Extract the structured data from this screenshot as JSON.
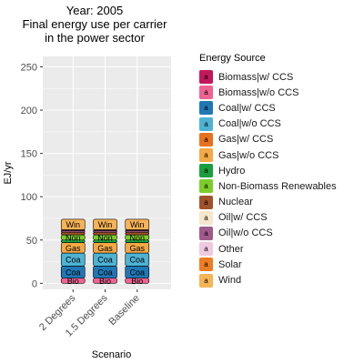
{
  "chart_data": {
    "type": "bar",
    "stacked": true,
    "title": "Year: 2005\nFinal energy use per carrier\nin the power sector",
    "xlabel": "Scenario",
    "ylabel": "EJ/yr",
    "ylim": [
      -7,
      262
    ],
    "yticks": [
      0,
      50,
      100,
      150,
      200,
      250
    ],
    "categories": [
      "2 Degrees",
      "1.5 Degrees",
      "Baseline"
    ],
    "legend_title": "Energy Source",
    "legend_key_letter": "a",
    "series": [
      {
        "name": "Biomass|w/ CCS",
        "color": "#c2185b",
        "values": [
          0,
          0,
          0
        ],
        "label": "Bio"
      },
      {
        "name": "Biomass|w/o CCS",
        "color": "#f06292",
        "values": [
          6,
          6,
          6
        ],
        "label": "Bio"
      },
      {
        "name": "Coal|w/ CCS",
        "color": "#1f78b4",
        "values": [
          14,
          14,
          14
        ],
        "label": "Coa"
      },
      {
        "name": "Coal|w/o CCS",
        "color": "#4eb3d3",
        "values": [
          15,
          15,
          15
        ],
        "label": "Coa"
      },
      {
        "name": "Gas|w/ CCS",
        "color": "#e8711d",
        "values": [
          0,
          0,
          0
        ],
        "label": "Gas"
      },
      {
        "name": "Gas|w/o CCS",
        "color": "#f4a944",
        "values": [
          12,
          12,
          12
        ],
        "label": "Gas"
      },
      {
        "name": "Hydro",
        "color": "#1b9e3e",
        "values": [
          3,
          3,
          3
        ],
        "label": "Hyd"
      },
      {
        "name": "Non-Biomass Renewables",
        "color": "#7ccd2a",
        "values": [
          6,
          6,
          6
        ],
        "label": "Non"
      },
      {
        "name": "Nuclear",
        "color": "#a0522d",
        "values": [
          3,
          3,
          3
        ],
        "label": "Nuc"
      },
      {
        "name": "Oil|w/ CCS",
        "color": "#f5e6cc",
        "values": [
          0,
          0,
          0
        ],
        "label": "Oil"
      },
      {
        "name": "Oil|w/o CCS",
        "color": "#a05a8c",
        "values": [
          2,
          2,
          2
        ],
        "label": "Oil"
      },
      {
        "name": "Other",
        "color": "#f0c8e0",
        "values": [
          0,
          0,
          0
        ],
        "label": "Oth"
      },
      {
        "name": "Solar",
        "color": "#ee7d22",
        "values": [
          1,
          1,
          1
        ],
        "label": "Sol"
      },
      {
        "name": "Wind",
        "color": "#f6b457",
        "values": [
          12,
          12,
          12
        ],
        "label": "Win"
      }
    ],
    "grid": true,
    "legend_position": "right"
  }
}
